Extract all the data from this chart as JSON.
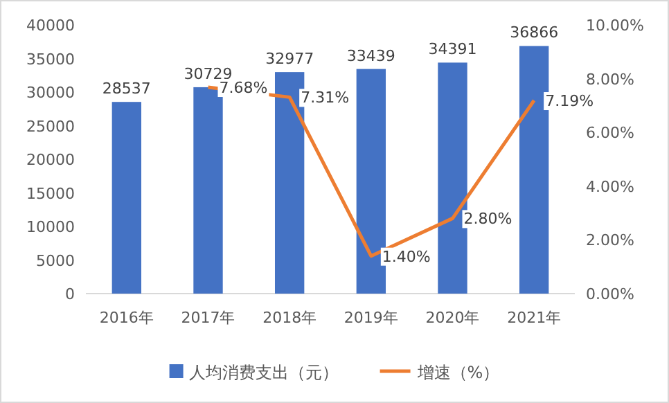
{
  "chart_data": {
    "type": "bar",
    "categories": [
      "2016年",
      "2017年",
      "2018年",
      "2019年",
      "2020年",
      "2021年"
    ],
    "series": [
      {
        "name": "人均消费支出（元）",
        "color": "#4472c4",
        "values": [
          28537,
          30729,
          32977,
          33439,
          34391,
          36866
        ],
        "value_labels": [
          "28537",
          "30729",
          "32977",
          "33439",
          "34391",
          "36866"
        ]
      },
      {
        "name": "增速（%）",
        "type": "line",
        "axis": "y2",
        "color": "#ed7d31",
        "values": [
          null,
          7.68,
          7.31,
          1.4,
          2.8,
          7.19
        ],
        "value_labels": [
          null,
          "7.68%",
          "7.31%",
          "1.40%",
          "2.80%",
          "7.19%"
        ]
      }
    ],
    "ylim": [
      0,
      40000
    ],
    "yticks": [
      0,
      5000,
      10000,
      15000,
      20000,
      25000,
      30000,
      35000,
      40000
    ],
    "y2lim": [
      0,
      10
    ],
    "y2ticks": [
      {
        "value": 0,
        "label": "0.00%"
      },
      {
        "value": 2,
        "label": "2.00%"
      },
      {
        "value": 4,
        "label": "4.00%"
      },
      {
        "value": 6,
        "label": "6.00%"
      },
      {
        "value": 8,
        "label": "8.00%"
      },
      {
        "value": 10,
        "label": "10.00%"
      }
    ],
    "legend": "bottom",
    "grid": false,
    "marker": "none",
    "line_style": "solid"
  }
}
